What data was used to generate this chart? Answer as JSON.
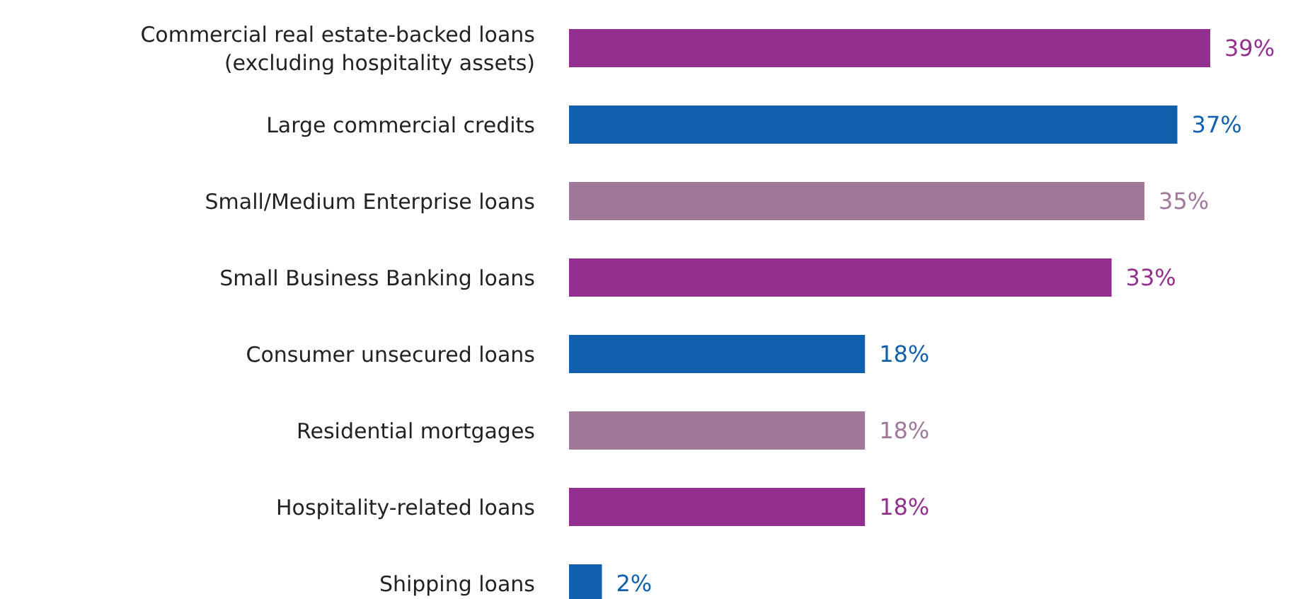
{
  "chart_data": {
    "type": "bar",
    "orientation": "horizontal",
    "categories": [
      "Commercial real estate-backed loans (excluding hospitality assets)",
      "Large commercial credits",
      "Small/Medium Enterprise loans",
      "Small Business Banking loans",
      "Consumer unsecured loans",
      "Residential mortgages",
      "Hospitality-related loans",
      "Shipping loans"
    ],
    "values": [
      39,
      37,
      35,
      33,
      18,
      18,
      18,
      2
    ],
    "colors": [
      "#93308f",
      "#1160ae",
      "#a0789a",
      "#93308f",
      "#1160ae",
      "#a0789a",
      "#93308f",
      "#1160ae"
    ],
    "value_labels": [
      "39%",
      "37%",
      "35%",
      "33%",
      "18%",
      "18%",
      "18%",
      "2%"
    ]
  }
}
